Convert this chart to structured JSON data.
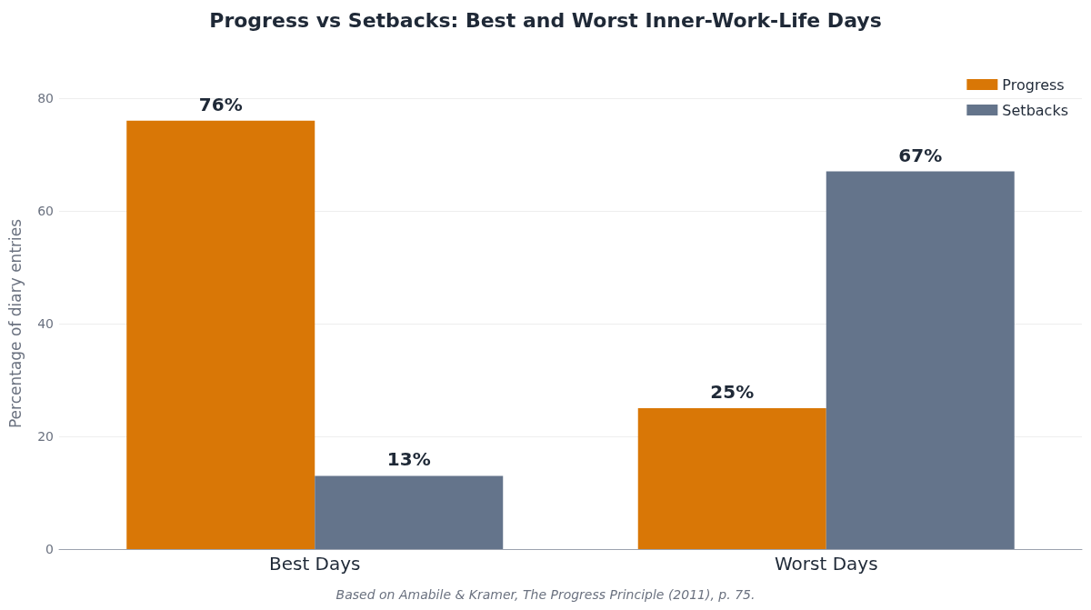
{
  "chart_data": {
    "type": "bar",
    "title": "Progress vs Setbacks: Best and Worst Inner-Work-Life Days",
    "ylabel": "Percentage of diary entries",
    "categories": [
      "Best Days",
      "Worst Days"
    ],
    "series": [
      {
        "name": "Progress",
        "color": "#d97706",
        "values": [
          76,
          25
        ],
        "value_labels": [
          "76%",
          "25%"
        ]
      },
      {
        "name": "Setbacks",
        "color": "#64748b",
        "values": [
          13,
          67
        ],
        "value_labels": [
          "13%",
          "67%"
        ]
      }
    ],
    "ylim": [
      0,
      80
    ],
    "yticks": [
      0,
      20,
      40,
      60,
      80
    ],
    "grid": "y",
    "legend": "top right",
    "annotations": [
      "Based on Amabile & Kramer, The Progress Principle (2011), p. 75."
    ]
  }
}
